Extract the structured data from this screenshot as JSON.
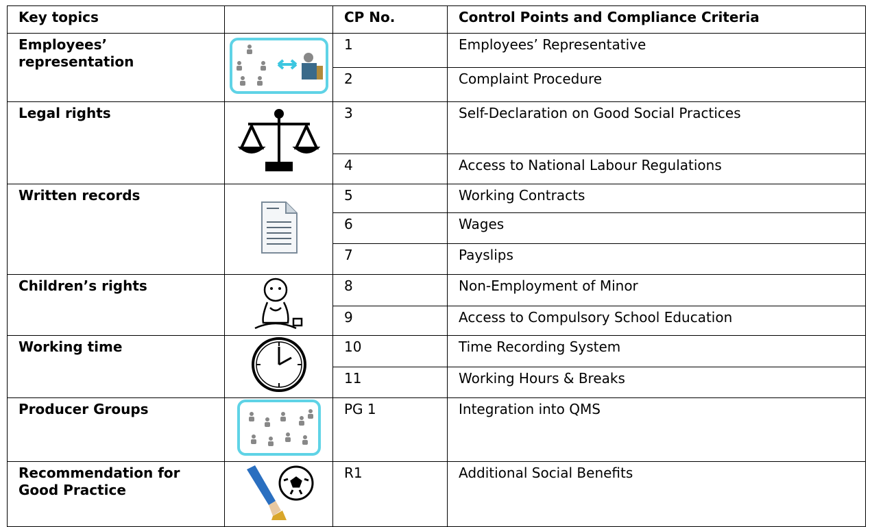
{
  "header": {
    "key_topics": "Key topics",
    "cp_no": "CP No.",
    "criteria": "Control Points and Compliance Criteria"
  },
  "groups": [
    {
      "topic": "Employees’ representation",
      "rows": [
        {
          "cp": "1",
          "text": "Employees’ Representative"
        },
        {
          "cp": "2",
          "text": "Complaint Procedure"
        }
      ]
    },
    {
      "topic": "Legal rights",
      "rows": [
        {
          "cp": "3",
          "text": "Self-Declaration on Good Social Practices"
        },
        {
          "cp": "4",
          "text": "Access to National Labour Regulations"
        }
      ]
    },
    {
      "topic": "Written records",
      "rows": [
        {
          "cp": "5",
          "text": "Working Contracts"
        },
        {
          "cp": "6",
          "text": "Wages"
        },
        {
          "cp": "7",
          "text": "Payslips"
        }
      ]
    },
    {
      "topic": "Children’s rights",
      "rows": [
        {
          "cp": "8",
          "text": "Non-Employment of Minor"
        },
        {
          "cp": "9",
          "text": "Access to Compulsory School Education"
        }
      ]
    },
    {
      "topic": "Working time",
      "rows": [
        {
          "cp": "10",
          "text": "Time Recording System"
        },
        {
          "cp": "11",
          "text": "Working Hours & Breaks"
        }
      ]
    },
    {
      "topic": "Producer Groups",
      "rows": [
        {
          "cp": "PG 1",
          "text": "Integration into QMS"
        }
      ]
    },
    {
      "topic": "Recommendation for Good Practice",
      "rows": [
        {
          "cp": "R1",
          "text": "Additional Social Benefits"
        }
      ]
    }
  ]
}
